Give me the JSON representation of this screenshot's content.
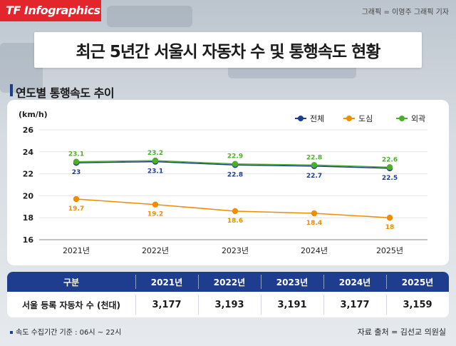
{
  "header": {
    "logo": "TF Infographics",
    "credit": "그래픽 = 이영주 그래픽 기자",
    "title": "최근 5년간 서울시 자동차 수 및 통행속도 현황"
  },
  "section": {
    "title": "연도별 통행속도 추이"
  },
  "colors": {
    "total": "#1f3d8f",
    "downtown": "#f08c00",
    "outer": "#4caf2b",
    "navy": "#1f3d8f",
    "brand_red": "#e3262b"
  },
  "chart_data": {
    "type": "line",
    "title": "연도별 통행속도 추이",
    "ylabel": "(km/h)",
    "xlabel": "",
    "categories": [
      "2021년",
      "2022년",
      "2023년",
      "2024년",
      "2025년"
    ],
    "ylim": [
      16,
      26
    ],
    "yticks": [
      16,
      18,
      20,
      22,
      24,
      26
    ],
    "grid": true,
    "legend_position": "top-right",
    "series": [
      {
        "name": "전체",
        "key": "total",
        "values": [
          23,
          23.1,
          22.8,
          22.7,
          22.5
        ],
        "labels": [
          "23",
          "23.1",
          "22.8",
          "22.7",
          "22.5"
        ],
        "label_pos": "below"
      },
      {
        "name": "도심",
        "key": "downtown",
        "values": [
          19.7,
          19.2,
          18.6,
          18.4,
          18
        ],
        "labels": [
          "19.7",
          "19.2",
          "18.6",
          "18.4",
          "18"
        ],
        "label_pos": "below"
      },
      {
        "name": "외곽",
        "key": "outer",
        "values": [
          23.1,
          23.2,
          22.9,
          22.8,
          22.6
        ],
        "labels": [
          "23.1",
          "23.2",
          "22.9",
          "22.8",
          "22.6"
        ],
        "label_pos": "above"
      }
    ]
  },
  "table": {
    "headers": [
      "구분",
      "2021년",
      "2022년",
      "2023년",
      "2024년",
      "2025년"
    ],
    "row_label": "서울 등록 자동차 수 (천대)",
    "values": [
      "3,177",
      "3,193",
      "3,191",
      "3,177",
      "3,159"
    ]
  },
  "footer": {
    "note": "속도 수집기간 기준 : 06시 ~ 22시",
    "source": "자료 출처 = 김선교 의원실"
  }
}
